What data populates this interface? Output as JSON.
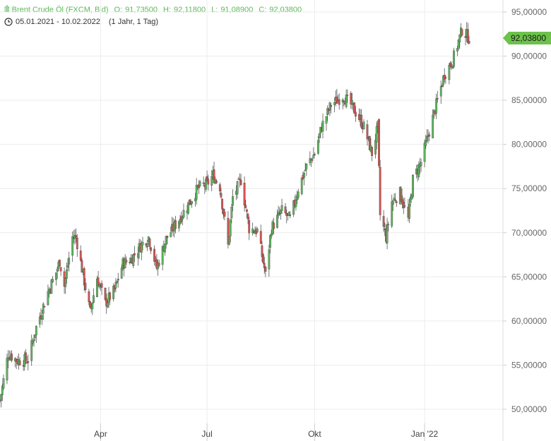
{
  "header": {
    "instrument": "Brent Crude Öl (FXCM, Bid)",
    "open_label": "O:",
    "open": "91,73500",
    "high_label": "H:",
    "high": "92,11800",
    "low_label": "L:",
    "low": "91,08900",
    "close_label": "C:",
    "close": "92,03800",
    "date_range": "05.01.2021 - 10.02.2022",
    "period": "(1 Jahr, 1 Tag)",
    "symbol_icon": "candlestick-icon",
    "time_icon": "clock-icon"
  },
  "colors": {
    "up": "#5cb85c",
    "down": "#d9534f",
    "grid": "#ececec",
    "last_price": "#6cc24a"
  },
  "chart_data": {
    "type": "candlestick",
    "title": "Brent Crude Öl (FXCM, Bid)",
    "x_tick_labels": [
      "Apr",
      "Jul",
      "Okt",
      "Jan '22"
    ],
    "y_tick_labels": [
      "95,00000",
      "90,00000",
      "85,00000",
      "80,00000",
      "75,00000",
      "70,00000",
      "65,00000",
      "60,00000",
      "55,00000",
      "50,00000"
    ],
    "y_ticks": [
      95,
      90,
      85,
      80,
      75,
      70,
      65,
      60,
      55,
      50
    ],
    "ylim": [
      48.5,
      96.2
    ],
    "grid": true,
    "y_axis_position": "right",
    "last_price": 92.038,
    "last_price_label": "92,03800",
    "x_start": "2021-01-05",
    "x_end": "2022-02-10",
    "close_anchors": [
      [
        "2021-01-05",
        51.0
      ],
      [
        "2021-01-12",
        56.3
      ],
      [
        "2021-01-20",
        55.5
      ],
      [
        "2021-01-29",
        55.6
      ],
      [
        "2021-02-05",
        59.3
      ],
      [
        "2021-02-15",
        63.3
      ],
      [
        "2021-02-22",
        65.5
      ],
      [
        "2021-02-25",
        66.8
      ],
      [
        "2021-03-01",
        64.0
      ],
      [
        "2021-03-08",
        69.5
      ],
      [
        "2021-03-11",
        69.5
      ],
      [
        "2021-03-18",
        64.5
      ],
      [
        "2021-03-23",
        61.0
      ],
      [
        "2021-03-29",
        64.9
      ],
      [
        "2021-04-05",
        62.0
      ],
      [
        "2021-04-13",
        63.5
      ],
      [
        "2021-04-20",
        66.5
      ],
      [
        "2021-04-27",
        67.0
      ],
      [
        "2021-05-05",
        68.5
      ],
      [
        "2021-05-12",
        69.5
      ],
      [
        "2021-05-19",
        66.0
      ],
      [
        "2021-05-27",
        69.3
      ],
      [
        "2021-06-07",
        71.5
      ],
      [
        "2021-06-14",
        73.0
      ],
      [
        "2021-06-23",
        75.0
      ],
      [
        "2021-07-01",
        75.5
      ],
      [
        "2021-07-06",
        76.5
      ],
      [
        "2021-07-12",
        75.2
      ],
      [
        "2021-07-19",
        68.5
      ],
      [
        "2021-07-23",
        74.0
      ],
      [
        "2021-07-30",
        76.0
      ],
      [
        "2021-08-06",
        70.5
      ],
      [
        "2021-08-13",
        70.2
      ],
      [
        "2021-08-19",
        66.0
      ],
      [
        "2021-08-20",
        65.2
      ],
      [
        "2021-08-25",
        70.5
      ],
      [
        "2021-09-03",
        72.5
      ],
      [
        "2021-09-10",
        71.5
      ],
      [
        "2021-09-17",
        75.0
      ],
      [
        "2021-09-24",
        77.5
      ],
      [
        "2021-10-01",
        79.0
      ],
      [
        "2021-10-07",
        82.0
      ],
      [
        "2021-10-15",
        84.5
      ],
      [
        "2021-10-25",
        85.5
      ],
      [
        "2021-11-01",
        84.5
      ],
      [
        "2021-11-08",
        83.0
      ],
      [
        "2021-11-12",
        82.0
      ],
      [
        "2021-11-19",
        79.0
      ],
      [
        "2021-11-24",
        82.0
      ],
      [
        "2021-11-26",
        72.0
      ],
      [
        "2021-12-01",
        69.5
      ],
      [
        "2021-12-06",
        73.5
      ],
      [
        "2021-12-13",
        74.5
      ],
      [
        "2021-12-20",
        71.5
      ],
      [
        "2021-12-24",
        76.0
      ],
      [
        "2021-12-31",
        78.0
      ],
      [
        "2022-01-07",
        81.5
      ],
      [
        "2022-01-14",
        85.0
      ],
      [
        "2022-01-20",
        88.0
      ],
      [
        "2022-01-27",
        89.5
      ],
      [
        "2022-02-04",
        93.0
      ],
      [
        "2022-02-10",
        92.04
      ]
    ]
  }
}
